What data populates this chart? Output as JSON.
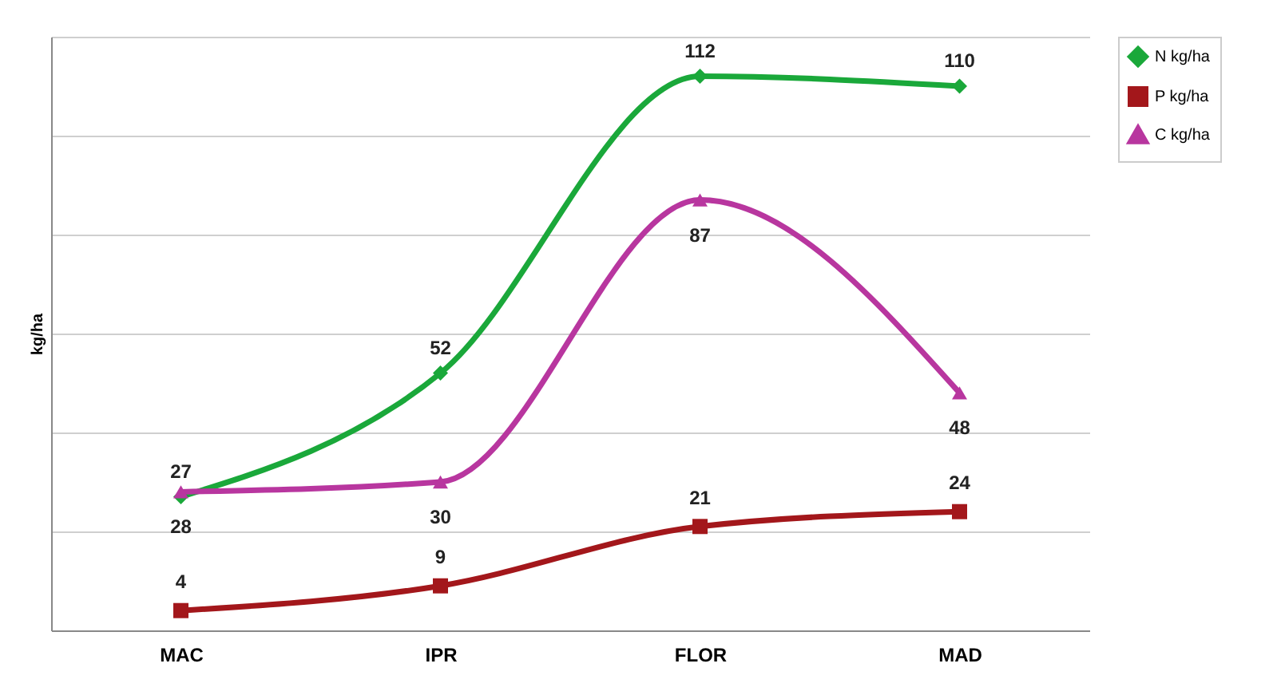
{
  "chart_data": {
    "type": "line",
    "ylabel": "kg/ha",
    "categories": [
      "MAC",
      "IPR",
      "FLOR",
      "MAD"
    ],
    "ylim": [
      0,
      120
    ],
    "yticks": [
      {
        "value": 0,
        "label": null
      },
      {
        "value": 20,
        "label": null
      },
      {
        "value": 40,
        "label": null
      },
      {
        "value": 60,
        "label": null
      },
      {
        "value": 80,
        "label": null
      },
      {
        "value": 100,
        "label": null
      },
      {
        "value": 120,
        "label": null
      }
    ],
    "tick_labels": "x",
    "grid": "y",
    "legend": "right",
    "data_labels": true,
    "series": [
      {
        "name": "N kg/ha",
        "color": "#1aa83a",
        "marker": "diamond",
        "values": [
          27,
          52,
          112,
          110
        ]
      },
      {
        "name": "P kg/ha",
        "color": "#a3171b",
        "marker": "square",
        "values": [
          4,
          9,
          21,
          24
        ]
      },
      {
        "name": "C kg/ha",
        "color": "#b8369f",
        "marker": "triangle",
        "values": [
          28,
          30,
          87,
          48
        ]
      }
    ]
  }
}
